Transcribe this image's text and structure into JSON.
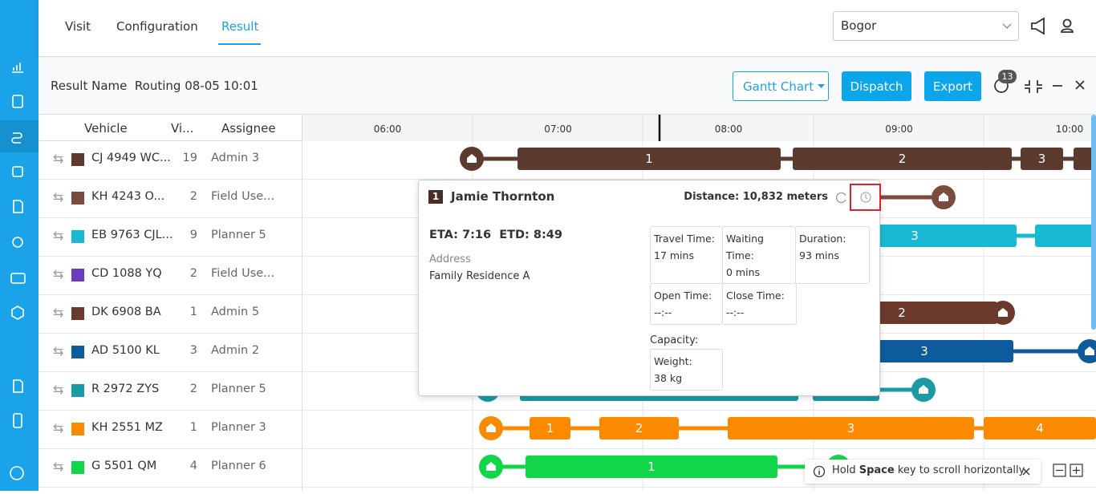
{
  "nav": {
    "tabs": [
      "Visit",
      "Configuration",
      "Result"
    ],
    "region": "Bogor"
  },
  "toolbar": {
    "result_name_label": "Result Name",
    "result_name": "Routing 08-05 10:01",
    "view": "Gantt Chart",
    "buttons": [
      "Dispatch",
      "Export"
    ],
    "badge": "13"
  },
  "table": {
    "headers": [
      "Vehicle",
      "Vi...",
      "Assignee"
    ],
    "timeline": [
      "06:00",
      "07:00",
      "08:00",
      "09:00",
      "10:00"
    ],
    "rows": [
      {
        "vehicle": "CJ 4949 WC...",
        "color": "#5d3a2e",
        "visits": 19,
        "assignee": "Admin 3",
        "segments": [
          "1",
          "2",
          "3"
        ]
      },
      {
        "vehicle": "KH 4243 O...",
        "color": "#7b4b3d",
        "visits": 2,
        "assignee": "Field Use...",
        "segments": []
      },
      {
        "vehicle": "EB 9763 CJL...",
        "color": "#18b9d3",
        "visits": 9,
        "assignee": "Planner 5",
        "segments": [
          "3"
        ]
      },
      {
        "vehicle": "CD 1088 YQ",
        "color": "#6e3cbf",
        "visits": 2,
        "assignee": "Field Use...",
        "segments": []
      },
      {
        "vehicle": "DK 6908 BA",
        "color": "#6b3a2c",
        "visits": 1,
        "assignee": "Admin 5",
        "segments": [
          "2"
        ]
      },
      {
        "vehicle": "AD 5100 KL",
        "color": "#0d5a9c",
        "visits": 3,
        "assignee": "Admin 2",
        "segments": [
          "3"
        ]
      },
      {
        "vehicle": "R 2972 ZYS",
        "color": "#1a9aa7",
        "visits": 2,
        "assignee": "Planner 5",
        "segments": []
      },
      {
        "vehicle": "KH 2551 MZ",
        "color": "#fb8a00",
        "visits": 1,
        "assignee": "Planner 3",
        "segments": [
          "1",
          "2",
          "3",
          "4"
        ]
      },
      {
        "vehicle": "G 5501 QM",
        "color": "#12d64a",
        "visits": 4,
        "assignee": "Planner 6",
        "segments": [
          "1"
        ]
      }
    ]
  },
  "popup": {
    "index": "1",
    "name": "Jamie Thornton",
    "distance": "Distance: 10,832 meters",
    "eta": "ETA: 7:16",
    "etd": "ETD: 8:49",
    "address_label": "Address",
    "address": "Family Residence A",
    "fields": [
      {
        "label": "Travel Time:",
        "value": "17 mins"
      },
      {
        "label": "Waiting Time:",
        "value": "0 mins"
      },
      {
        "label": "Duration:",
        "value": "93 mins"
      },
      {
        "label": "Open Time:",
        "value": "--:--"
      },
      {
        "label": "Close Time:",
        "value": "--:--"
      }
    ],
    "capacity_label": "Capacity:",
    "weight": {
      "label": "Weight:",
      "value": "38 kg"
    }
  },
  "hint": {
    "prefix": "Hold",
    "key": "Space",
    "suffix": "key to scroll horizontally"
  }
}
